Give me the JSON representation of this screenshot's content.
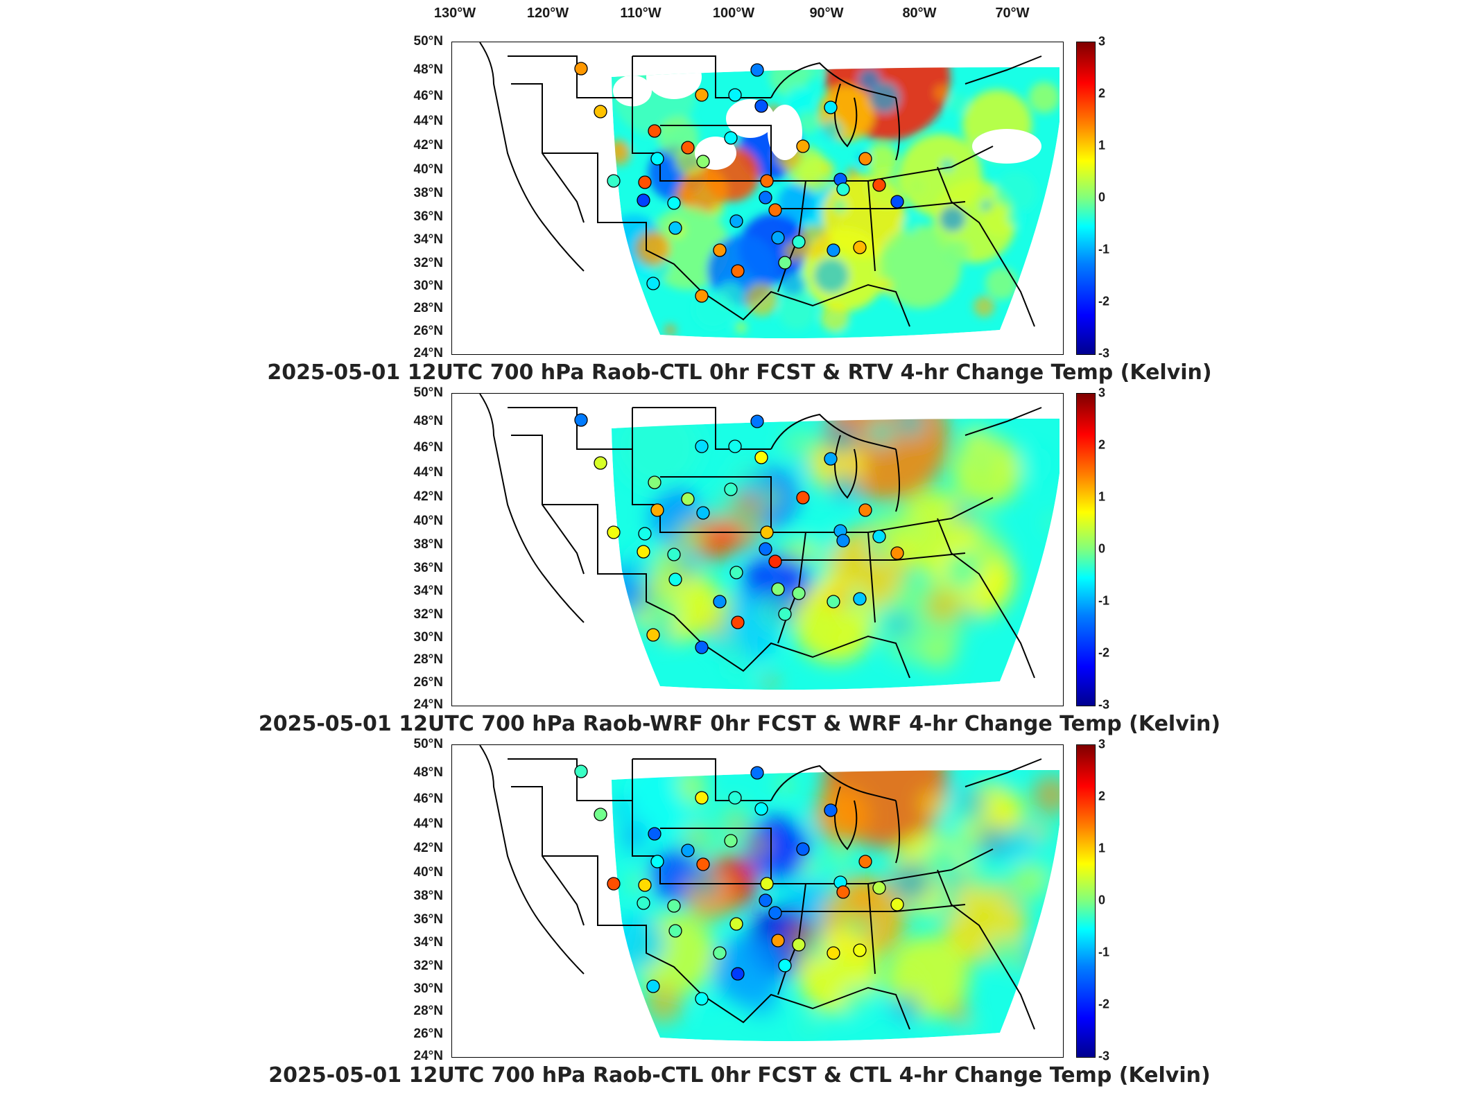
{
  "lon_labels": [
    "130°W",
    "120°W",
    "110°W",
    "100°W",
    "90°W",
    "80°W",
    "70°W"
  ],
  "lat_labels": [
    "50°N",
    "48°N",
    "46°N",
    "44°N",
    "42°N",
    "40°N",
    "38°N",
    "36°N",
    "34°N",
    "32°N",
    "30°N",
    "28°N",
    "26°N",
    "24°N"
  ],
  "colorbar": {
    "ticks": [
      "3",
      "2",
      "1",
      "0",
      "-1",
      "-2",
      "-3"
    ],
    "min": -3,
    "max": 3,
    "colormap": "jet"
  },
  "panels": [
    {
      "title": "2025-05-01 12UTC 700 hPa Raob-CTL 0hr FCST & RTV 4-hr Change Temp (Kelvin)"
    },
    {
      "title": "2025-05-01 12UTC 700 hPa Raob-WRF 0hr FCST & WRF 4-hr Change Temp (Kelvin)"
    },
    {
      "title": "2025-05-01 12UTC 700 hPa Raob-CTL 0hr FCST & CTL 4-hr Change Temp (Kelvin)"
    }
  ],
  "colors": {
    "border": "#000000",
    "field_base": "#5fd0ff"
  }
}
